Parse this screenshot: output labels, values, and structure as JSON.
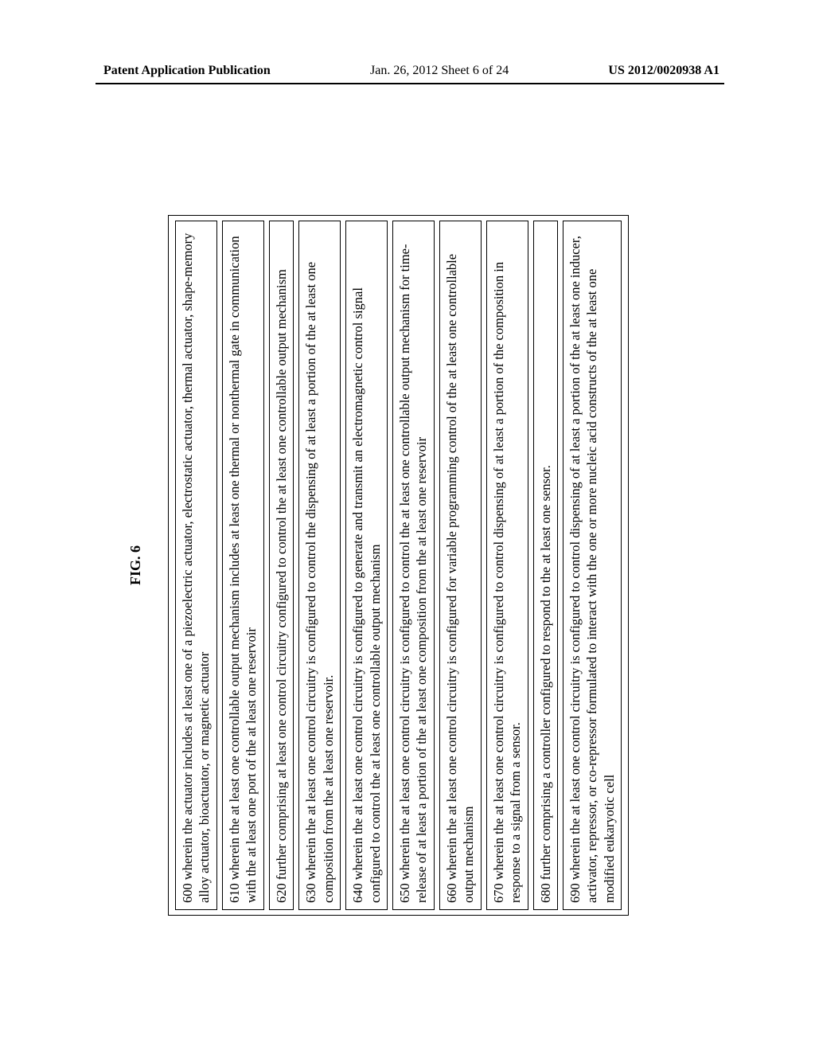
{
  "header": {
    "left": "Patent Application Publication",
    "center": "Jan. 26, 2012  Sheet 6 of 24",
    "right": "US 2012/0020938 A1"
  },
  "figure": {
    "title": "FIG. 6",
    "claims": [
      "600 wherein the actuator includes at least one of a piezoelectric actuator, electrostatic actuator, thermal actuator, shape-memory alloy actuator, bioactuator, or magnetic actuator",
      "610 wherein the at least one controllable output mechanism includes at least one thermal or nonthermal gate in communication with the at least one port of the at least one reservoir",
      "620 further comprising at least one control circuitry configured to control the at least one controllable output mechanism",
      "630 wherein the at least one control circuitry is configured to control the dispensing of at least a portion of the at least one composition from the at least one reservoir.",
      "640 wherein the at least one control circuitry is configured to generate and transmit an electromagnetic control signal configured to control the at least one controllable output mechanism",
      "650 wherein the at least one control circuitry is configured to control the at least one controllable output mechanism for time-release of at least a portion of the at least one composition from the at least one reservoir",
      "660 wherein the at least one control circuitry is configured for variable programming control of the at least one controllable output mechanism",
      "670 wherein the at least one control circuitry is configured to control dispensing of at least a portion of the composition in response to a signal from a sensor.",
      "680 further comprising a controller configured to respond to the at least one sensor.",
      "690 wherein the at least one control circuitry is configured to control dispensing of at least a portion of the at least one inducer, activator, repressor, or co-repressor formulated to interact with the one or more nucleic acid constructs of the at least one modified eukaryotic cell"
    ]
  }
}
